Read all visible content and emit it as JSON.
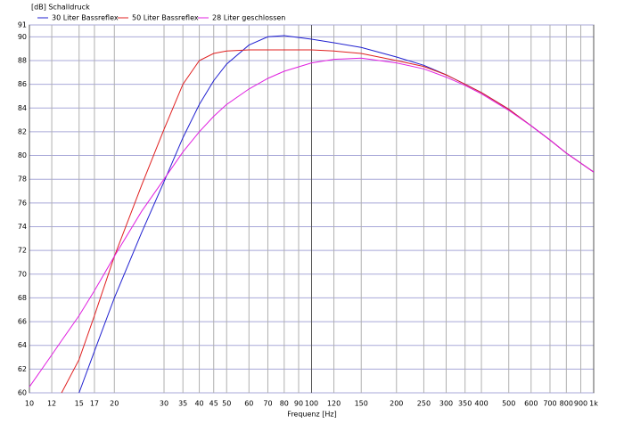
{
  "chart_data": {
    "type": "line",
    "title": "[dB] Schalldruck",
    "x_label": "Frequenz [Hz]",
    "x_scale": "log",
    "grid": true,
    "x": [
      10,
      12,
      13,
      15,
      17,
      20,
      25,
      30,
      35,
      40,
      45,
      50,
      60,
      70,
      80,
      100,
      120,
      150,
      200,
      250,
      300,
      350,
      400,
      500,
      600,
      700,
      800,
      1000
    ],
    "series": [
      {
        "name": "30 Liter Bassreflex",
        "color": "#2020d0",
        "values": [
          null,
          null,
          null,
          60,
          63.5,
          68,
          73.5,
          77.8,
          81.5,
          84.3,
          86.3,
          87.7,
          89.3,
          90.0,
          90.1,
          89.8,
          89.5,
          89.1,
          88.3,
          87.6,
          86.8,
          86.0,
          85.3,
          83.9,
          82.5,
          81.3,
          80.2,
          78.6
        ]
      },
      {
        "name": "50 Liter Bassreflex",
        "color": "#e02020",
        "values": [
          null,
          null,
          60,
          62.8,
          66.5,
          71.5,
          77.5,
          82.2,
          86,
          88,
          88.6,
          88.8,
          88.9,
          88.9,
          88.9,
          88.9,
          88.8,
          88.6,
          88,
          87.5,
          86.8,
          86.0,
          85.3,
          83.9,
          82.5,
          81.3,
          80.2,
          78.6
        ]
      },
      {
        "name": "28 Liter geschlossen",
        "color": "#e020e0",
        "values": [
          60.5,
          63.2,
          64.4,
          66.5,
          68.6,
          71.5,
          75.3,
          78,
          80.3,
          82,
          83.3,
          84.3,
          85.6,
          86.5,
          87.1,
          87.8,
          88.1,
          88.2,
          87.8,
          87.3,
          86.6,
          85.9,
          85.2,
          83.8,
          82.5,
          81.3,
          80.2,
          78.6
        ]
      }
    ],
    "xlim": [
      10,
      1000
    ],
    "xticks": [
      10,
      12,
      15,
      17,
      20,
      30,
      35,
      40,
      45,
      50,
      60,
      70,
      80,
      90,
      100,
      120,
      150,
      200,
      250,
      300,
      350,
      400,
      500,
      600,
      700,
      800,
      900,
      {
        "value": 1000,
        "label": "1k"
      }
    ],
    "ylim": [
      60,
      91
    ],
    "yticks": [
      60,
      62,
      64,
      66,
      68,
      70,
      72,
      74,
      76,
      78,
      80,
      82,
      84,
      86,
      88,
      90,
      91
    ]
  }
}
